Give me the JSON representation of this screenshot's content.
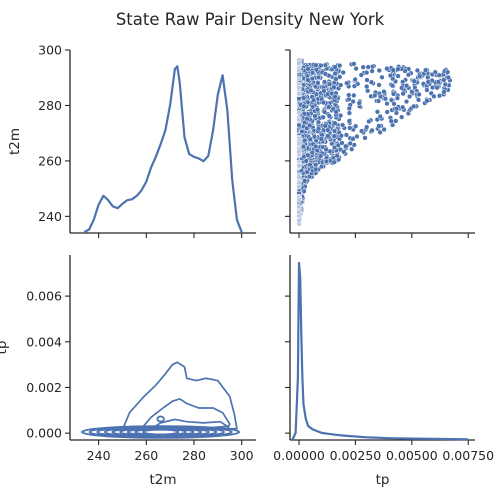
{
  "title": "State Raw Pair Density New York",
  "chart_data": {
    "type": "pairplot",
    "variables": [
      "t2m",
      "tp"
    ],
    "color": "#4c72b0",
    "panels": [
      {
        "position": "t2m-diagonal",
        "type": "kde-line",
        "x": [
          234,
          236,
          238,
          240,
          242,
          244,
          246,
          248,
          250,
          252,
          254,
          256,
          258,
          260,
          262,
          264,
          266,
          268,
          270,
          272,
          273,
          274,
          276,
          278,
          280,
          282,
          284,
          286,
          288,
          290,
          292,
          294,
          296,
          298,
          300
        ],
        "density": [
          0.1,
          0.4,
          1.5,
          3.2,
          4.2,
          3.7,
          3.0,
          2.8,
          3.3,
          3.7,
          3.8,
          4.2,
          4.8,
          5.8,
          7.4,
          8.6,
          10.0,
          11.6,
          14.5,
          18.5,
          18.8,
          17.0,
          10.8,
          8.9,
          8.6,
          8.4,
          8.1,
          8.7,
          11.6,
          15.6,
          17.8,
          13.8,
          6.0,
          1.5,
          0.1
        ],
        "xlim": [
          228,
          306
        ],
        "ylim": [
          234,
          300
        ]
      },
      {
        "position": "upper-right",
        "type": "scatter",
        "x_var": "tp",
        "y_var": "t2m",
        "xlim": [
          -0.0004,
          0.0078
        ],
        "ylim": [
          234,
          300
        ],
        "envelope": {
          "x": [
            0.0,
            0.0003,
            0.0008,
            0.0014,
            0.002,
            0.0025,
            0.003,
            0.0035,
            0.004,
            0.0045,
            0.005,
            0.0055,
            0.006,
            0.0066
          ],
          "y_low": [
            237,
            252,
            256,
            259,
            261,
            264,
            267,
            269,
            272,
            275,
            278,
            280,
            283,
            284
          ],
          "y_high": [
            297,
            295,
            295,
            295,
            295,
            295,
            295,
            294,
            294,
            294,
            293,
            293,
            293,
            293
          ]
        }
      },
      {
        "position": "lower-left",
        "type": "kde-contour",
        "x_var": "t2m",
        "y_var": "tp",
        "xlim": [
          228,
          306
        ],
        "ylim": [
          -0.0003,
          0.0078
        ],
        "contour_bounds": [
          [
            [
              233,
              0.00045
            ],
            [
              300,
              0.00045
            ],
            [
              300,
              -0.0003
            ],
            [
              233,
              -0.0003
            ]
          ]
        ],
        "peak_levels": {
          "upper_outline_max": 0.0031,
          "upper_outline_x": 273
        }
      },
      {
        "position": "tp-diagonal",
        "type": "kde-line",
        "x": [
          -0.0003,
          -0.00015,
          -5e-05,
          0.0,
          5e-05,
          0.0001,
          0.00015,
          0.0002,
          0.0003,
          0.0004,
          0.0006,
          0.0008,
          0.001,
          0.0013,
          0.0016,
          0.002,
          0.0025,
          0.003,
          0.004,
          0.005,
          0.006,
          0.0075
        ],
        "density": [
          0.0,
          0.04,
          0.35,
          1.0,
          0.92,
          0.6,
          0.35,
          0.2,
          0.12,
          0.08,
          0.06,
          0.05,
          0.04,
          0.035,
          0.03,
          0.025,
          0.02,
          0.015,
          0.01,
          0.008,
          0.006,
          0.004
        ],
        "xlim": [
          -0.0004,
          0.0078
        ]
      }
    ],
    "axes": {
      "t2m": {
        "label": "t2m",
        "ticks": [
          240,
          260,
          280,
          300
        ]
      },
      "t2m_x_ticks": [
        240,
        260,
        280,
        300
      ],
      "tp": {
        "label": "tp",
        "ticks": [
          0.0,
          0.002,
          0.004,
          0.006
        ]
      },
      "tp_x_ticks": [
        0.0,
        0.0025,
        0.005,
        0.0075
      ]
    },
    "tick_labels": {
      "t2m_y": [
        "240",
        "260",
        "280",
        "300"
      ],
      "t2m_x": [
        "240",
        "260",
        "280",
        "300"
      ],
      "tp_y": [
        "0.000",
        "0.002",
        "0.004",
        "0.006"
      ],
      "tp_x": [
        "0.00000",
        "0.00250",
        "0.00500",
        "0.00750"
      ]
    }
  }
}
